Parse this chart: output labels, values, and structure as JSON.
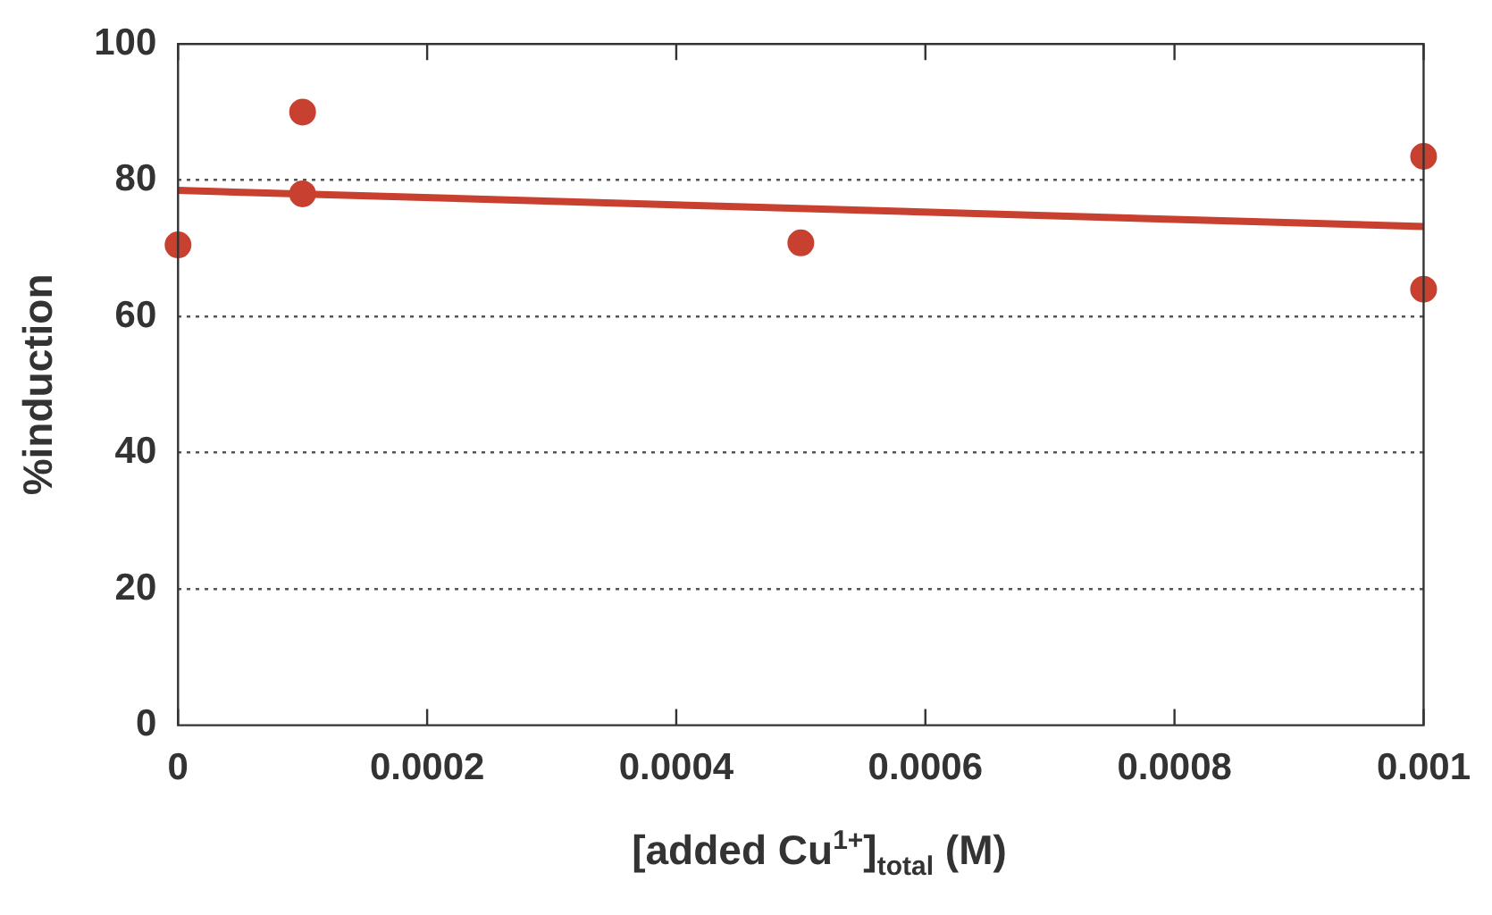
{
  "chart_data": {
    "type": "scatter",
    "xlabel": "[added Cu$^{1+}$]$_{total}$ (M)",
    "ylabel": "%induction",
    "series": [
      {
        "color": "#c8402f",
        "x": [
          0,
          0.0001,
          0.0001,
          0.0005,
          0.001,
          0.001
        ],
        "values": [
          70.5,
          90,
          78,
          70.8,
          83.5,
          64
        ],
        "marker": "circle"
      },
      {
        "type": "line",
        "color": "#c8402f",
        "x": [
          0,
          0.001
        ],
        "values": [
          78.5,
          73.2
        ],
        "marker": "none",
        "line_style": "solid"
      }
    ],
    "xlim": [
      0,
      0.001
    ],
    "xticks": [
      0,
      0.0002,
      0.0004,
      0.0006,
      0.0008,
      0.001
    ],
    "ylim": [
      0,
      100
    ],
    "yticks": [
      0,
      20,
      40,
      60,
      80,
      100
    ],
    "grid": "y"
  }
}
